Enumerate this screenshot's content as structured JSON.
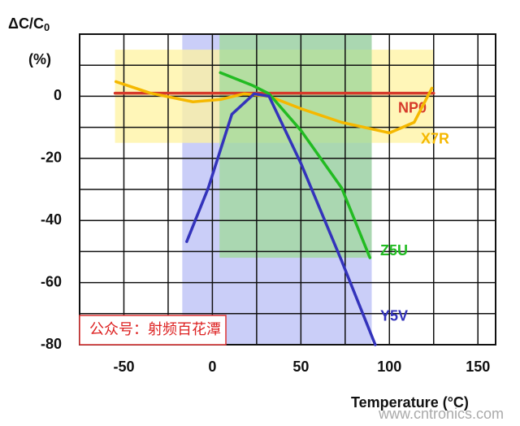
{
  "chart_data": {
    "type": "line",
    "y_label": "ΔC/C",
    "y_label_subscript": "0",
    "y_unit": "(%)",
    "x_label": "Temperature (°C)",
    "xlim": [
      -75,
      160
    ],
    "ylim": [
      -80,
      20
    ],
    "xticks": [
      -50,
      0,
      50,
      100,
      150
    ],
    "yticks": [
      0,
      -20,
      -40,
      -60,
      -80
    ],
    "minor_xticks": [
      -25,
      25,
      75,
      125
    ],
    "minor_yticks": [
      10,
      -10,
      -30,
      -50,
      -70
    ],
    "grid": true,
    "regions": [
      {
        "color": "#b8bdf5",
        "x": [
          -17,
          90
        ],
        "y": [
          20,
          -80
        ]
      },
      {
        "color": "#fff3a0",
        "x": [
          -55,
          125
        ],
        "y": [
          15,
          -15
        ]
      },
      {
        "color": "#9fd99a",
        "x": [
          4,
          90
        ],
        "y": [
          20,
          -52
        ]
      }
    ],
    "series": [
      {
        "name": "NP0",
        "color": "#d63a2a",
        "x": [
          -55,
          125
        ],
        "values": [
          1,
          1
        ]
      },
      {
        "name": "X7R",
        "color": "#f5b800",
        "x": [
          -54.5,
          -35,
          -11,
          5,
          18,
          32,
          50,
          73,
          100,
          114,
          124
        ],
        "values": [
          4.7,
          1,
          -1.8,
          -1,
          0.8,
          0,
          -4,
          -8.4,
          -11.8,
          -8.4,
          2.6
        ]
      },
      {
        "name": "Z5U",
        "color": "#22bb22",
        "x": [
          4.5,
          23,
          32,
          50,
          73,
          89
        ],
        "values": [
          7.6,
          3.4,
          0.8,
          -11,
          -29.5,
          -52
        ]
      },
      {
        "name": "Y5V",
        "color": "#3333bb",
        "x": [
          -14.5,
          -2.3,
          11,
          23.6,
          32,
          50,
          73,
          92
        ],
        "values": [
          -46.8,
          -29.5,
          -5.8,
          0.8,
          0,
          -21.6,
          -53,
          -80
        ]
      }
    ],
    "watermark": "公众号：射频百花潭",
    "site": "www.cntronics.com"
  }
}
